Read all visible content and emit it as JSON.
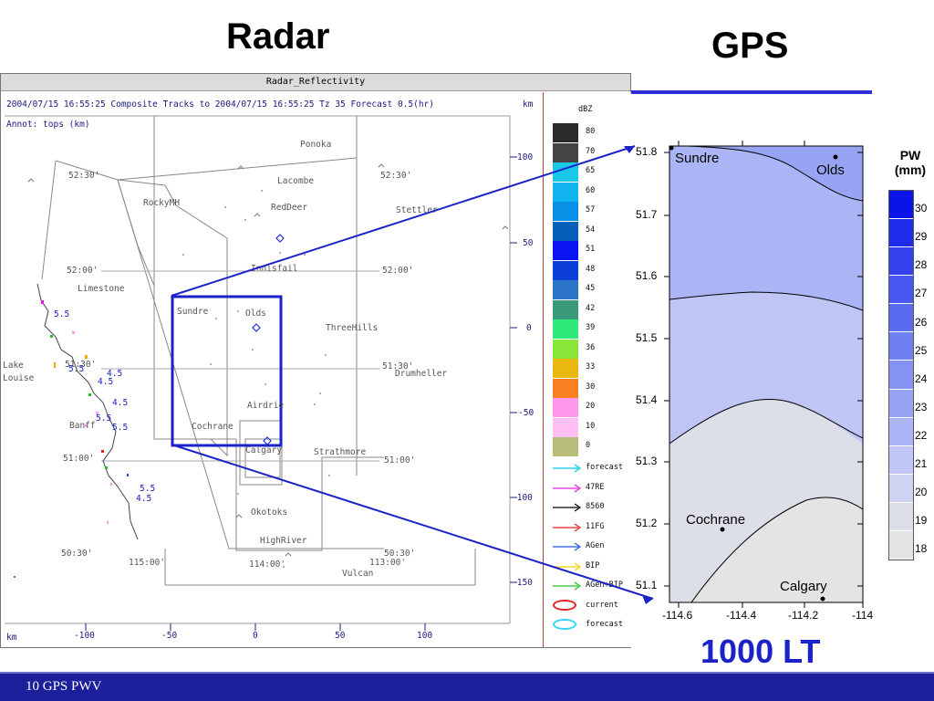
{
  "titles": {
    "radar": "Radar",
    "gps": "GPS",
    "time": "1000 LT"
  },
  "footer": {
    "text": "10 GPS PWV"
  },
  "radar": {
    "window_title": "Radar_Reflectivity",
    "header": "2004/07/15 16:55:25  Composite Tracks to 2004/07/15 16:55:25 Tz 35 Forecast 0.5(hr)",
    "annot": "Annot: tops (km)",
    "km_label": "km",
    "y_ticks": [
      "100",
      "50",
      "0",
      "-50",
      "-100",
      "-150"
    ],
    "x_ticks": [
      "-100",
      "-50",
      "0",
      "50",
      "100"
    ],
    "places": [
      "Ponoka",
      "Lacombe",
      "RockyMH",
      "RedDeer",
      "Stettler",
      "Innisfail",
      "Limestone",
      "Sundre",
      "Olds",
      "ThreeHills",
      "Drumheller",
      "Lake",
      "Louise",
      "Banff",
      "Airdrie",
      "Cochrane",
      "Calgary",
      "Strathmore",
      "Okotoks",
      "HighRiver",
      "Vulcan"
    ],
    "coords": [
      "52:30'",
      "52:30'",
      "52:00'",
      "52:00'",
      "51:30'",
      "51:30'",
      "51:00'",
      "51:00'",
      "50:30'",
      "50:30'",
      "115:00'",
      "114:00'",
      "113:00'"
    ],
    "tops": [
      "5.5",
      "5.5",
      "4.5",
      "4.5",
      "4.5",
      "5.5",
      "5.5",
      "5.5",
      "4.5"
    ],
    "dbz_title": "dBZ",
    "dbz_levels": [
      {
        "label": "80",
        "color": "#2b2b2b"
      },
      {
        "label": "70",
        "color": "#444444"
      },
      {
        "label": "65",
        "color": "#19c8e8"
      },
      {
        "label": "60",
        "color": "#12b4f0"
      },
      {
        "label": "57",
        "color": "#0a8fe6"
      },
      {
        "label": "54",
        "color": "#0460b8"
      },
      {
        "label": "51",
        "color": "#0a14f0"
      },
      {
        "label": "48",
        "color": "#0c3ed8"
      },
      {
        "label": "45",
        "color": "#2b74c8"
      },
      {
        "label": "42",
        "color": "#3a9a7a"
      },
      {
        "label": "39",
        "color": "#2ee87a"
      },
      {
        "label": "36",
        "color": "#8be63a"
      },
      {
        "label": "33",
        "color": "#e8b810"
      },
      {
        "label": "30",
        "color": "#f88020"
      },
      {
        "label": "20",
        "color": "#ff99ee"
      },
      {
        "label": "10",
        "color": "#ffbff4"
      },
      {
        "label": "0",
        "color": "#b8bd7a"
      }
    ],
    "tracks": [
      {
        "label": "forecast",
        "color": "#00c8e8"
      },
      {
        "label": "47RE",
        "color": "#e020e0"
      },
      {
        "label": "8560",
        "color": "#000000"
      },
      {
        "label": "11FG",
        "color": "#e82020"
      },
      {
        "label": "AGen",
        "color": "#2050e8"
      },
      {
        "label": "BIP",
        "color": "#f0d000"
      },
      {
        "label": "AGen+BIP",
        "color": "#20c020"
      }
    ],
    "cells": [
      {
        "label": "current",
        "color": "#e82020"
      },
      {
        "label": "forecast",
        "color": "#30d8f0"
      }
    ]
  },
  "gps": {
    "x_ticks": [
      "-114.6",
      "-114.4",
      "-114.2",
      "-114"
    ],
    "y_ticks": [
      "51.8",
      "51.7",
      "51.6",
      "51.5",
      "51.4",
      "51.3",
      "51.2",
      "51.1"
    ],
    "stations": [
      "Sundre",
      "Olds",
      "Cochrane",
      "Calgary"
    ],
    "colorbar_title": "PW\n(mm)",
    "pw_title_1": "PW",
    "pw_title_2": "(mm)",
    "pw_levels": [
      {
        "label": "30",
        "color": "#0a14e8"
      },
      {
        "label": "29",
        "color": "#1e2bea"
      },
      {
        "label": "28",
        "color": "#3241ec"
      },
      {
        "label": "27",
        "color": "#4656ee"
      },
      {
        "label": "26",
        "color": "#5a6bf0"
      },
      {
        "label": "25",
        "color": "#6e80f2"
      },
      {
        "label": "24",
        "color": "#8392f3"
      },
      {
        "label": "23",
        "color": "#97a4f4"
      },
      {
        "label": "22",
        "color": "#abb5f5"
      },
      {
        "label": "21",
        "color": "#bfc6f6"
      },
      {
        "label": "20",
        "color": "#cfd3f2"
      },
      {
        "label": "19",
        "color": "#dcdee8"
      },
      {
        "label": "18",
        "color": "#e4e4e4"
      }
    ]
  }
}
